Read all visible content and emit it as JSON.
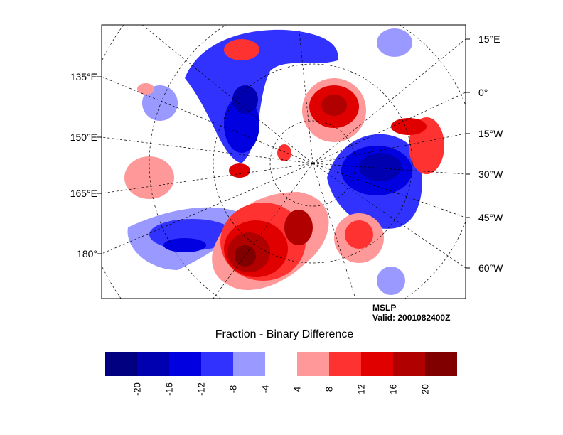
{
  "plot": {
    "field": "MSLP",
    "valid": "Valid: 2001082400Z",
    "title": "Fraction - Binary Difference",
    "left_labels": [
      "135°E",
      "150°E",
      "165°E",
      "180°"
    ],
    "right_labels": [
      "15°E",
      "0°",
      "15°W",
      "30°W",
      "45°W",
      "60°W"
    ]
  },
  "colorbar": {
    "colors": [
      "#000080",
      "#0000b0",
      "#0000e0",
      "#3232ff",
      "#9999ff",
      "#ffffff",
      "#ff9999",
      "#ff3232",
      "#e00000",
      "#b00000",
      "#800000"
    ],
    "ticks": [
      "-20",
      "-16",
      "-12",
      "-8",
      "-4",
      "4",
      "8",
      "12",
      "16",
      "20"
    ]
  }
}
